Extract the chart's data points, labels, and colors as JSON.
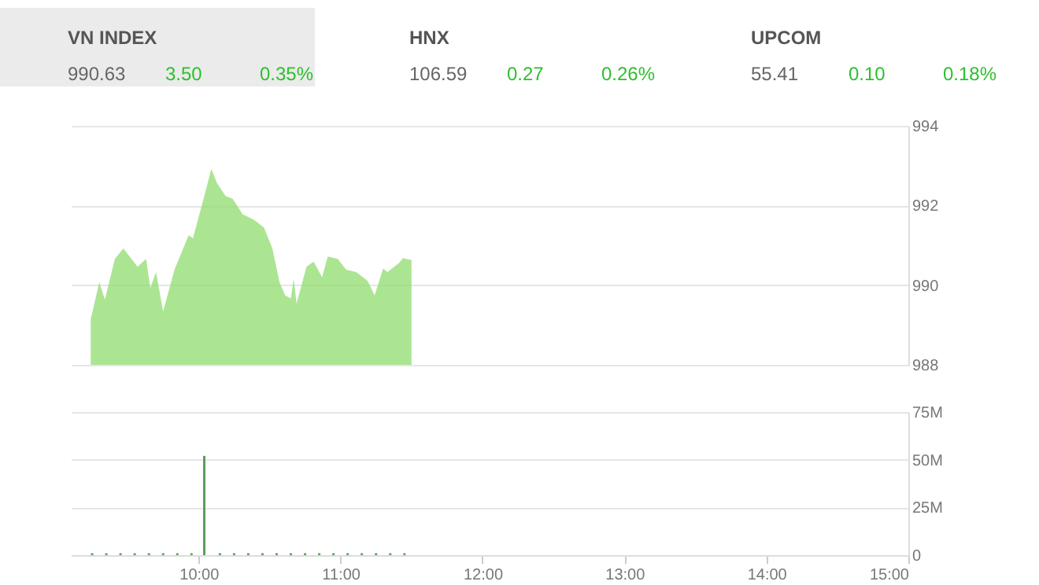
{
  "chart_data": [
    {
      "type": "other",
      "annotations": [
        "VN INDEX",
        "990.63",
        "3.50",
        "0.35%",
        "HNX",
        "106.59",
        "0.27",
        "0.26%",
        "UPCOM",
        "55.41",
        "0.10",
        "0.18%"
      ]
    },
    {
      "type": "area",
      "color": "#8fdc6e",
      "xlim": [
        9.1,
        15
      ],
      "ylim": [
        988,
        994
      ],
      "yticks": [
        988,
        990,
        992,
        994
      ],
      "grid": "y",
      "tick_labels": "y",
      "x": [
        9.24,
        9.3,
        9.34,
        9.41,
        9.47,
        9.57,
        9.63,
        9.66,
        9.7,
        9.75,
        9.83,
        9.93,
        9.96,
        10.03,
        10.09,
        10.13,
        10.19,
        10.24,
        10.31,
        10.39,
        10.46,
        10.52,
        10.57,
        10.61,
        10.65,
        10.67,
        10.69,
        10.76,
        10.81,
        10.87,
        10.91,
        10.98,
        11.04,
        11.11,
        11.19,
        11.24,
        11.3,
        11.33,
        11.41,
        11.44,
        11.5
      ],
      "values": [
        989.14,
        990.07,
        989.64,
        990.66,
        990.92,
        990.46,
        990.66,
        989.93,
        990.33,
        989.34,
        990.39,
        991.25,
        991.18,
        992.1,
        992.92,
        992.56,
        992.24,
        992.17,
        991.78,
        991.64,
        991.45,
        990.92,
        990.07,
        989.74,
        989.67,
        990.16,
        989.54,
        990.46,
        990.59,
        990.2,
        990.72,
        990.66,
        990.39,
        990.33,
        990.11,
        989.74,
        990.42,
        990.33,
        990.55,
        990.68,
        990.63
      ]
    },
    {
      "type": "bar",
      "color": "#5b9e5b",
      "xlim": [
        9.1,
        15
      ],
      "ylim": [
        0,
        75
      ],
      "grid": "y",
      "xticks": [
        {
          "value": 10,
          "label": "10:00"
        },
        {
          "value": 11,
          "label": "11:00"
        },
        {
          "value": 12,
          "label": "12:00"
        },
        {
          "value": 13,
          "label": "13:00"
        },
        {
          "value": 14,
          "label": "14:00"
        },
        {
          "value": 15,
          "label": "15:00"
        }
      ],
      "yticks": [
        0,
        {
          "value": 25,
          "label": "25M"
        },
        {
          "value": 50,
          "label": "50M"
        },
        {
          "value": 75,
          "label": "75M"
        }
      ],
      "x": [
        9.25,
        9.35,
        9.45,
        9.55,
        9.65,
        9.75,
        9.85,
        9.95,
        10.04,
        10.15,
        10.25,
        10.35,
        10.45,
        10.55,
        10.65,
        10.75,
        10.85,
        10.95,
        11.05,
        11.15,
        11.25,
        11.35,
        11.45
      ],
      "values": [
        1,
        1,
        1,
        1,
        1,
        1,
        1,
        1,
        52,
        1,
        1,
        1,
        1,
        1,
        1,
        1,
        1,
        1,
        1,
        1,
        1,
        1,
        1
      ]
    }
  ]
}
